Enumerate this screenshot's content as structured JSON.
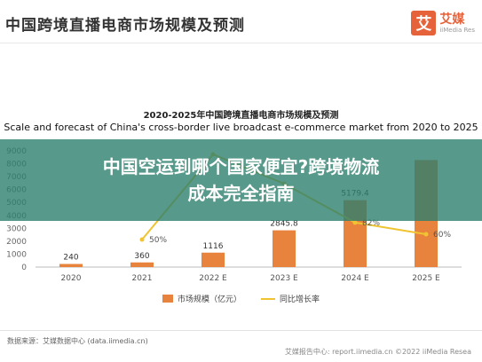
{
  "header": {
    "title": "中国跨境直播电商市场规模及预测",
    "logo_mark": "艾",
    "logo_cn": "艾媒",
    "logo_en": "iiMedia Res"
  },
  "banner": {
    "line1": "中国空运到哪个国家便宜?跨境物流",
    "line2": "成本完全指南"
  },
  "footer": {
    "source": "数据来源：艾媒数据中心 (data.iimedia.cn)",
    "report": "艾媒报告中心: report.iimedia.cn",
    "copyright": "©2022 iiMedia Resea"
  },
  "colors": {
    "bar": "#e8833e",
    "line": "#f0c431",
    "banner": "#2d806e"
  },
  "chart_data": {
    "type": "bar",
    "title": "2020-2025年中国跨境直播电商市场规模及预测",
    "subtitle": "Scale and forecast of China's cross-border live broadcast e-commerce market from 2020 to 2025",
    "categories": [
      "2020",
      "2021",
      "2022 E",
      "2023 E",
      "2024 E",
      "2025 E"
    ],
    "ylim": [
      0,
      9000
    ],
    "yticks": [
      "0",
      "1000",
      "2000",
      "3000",
      "4000",
      "5000",
      "6000",
      "7000",
      "8000",
      "9000"
    ],
    "grid": false,
    "legend_position": "bottom-center",
    "series": [
      {
        "name": "市场规模（亿元）",
        "type": "bar",
        "values": [
          240,
          360,
          1116,
          2845.8,
          5179.4,
          8287
        ],
        "labels": [
          "240",
          "360",
          "1116",
          "2845.8",
          "5179.4",
          ""
        ]
      },
      {
        "name": "同比增长率",
        "type": "line",
        "values_pct": [
          null,
          50,
          210,
          155,
          82,
          60
        ],
        "labels": [
          "",
          "50%",
          "",
          "",
          "82%",
          "60%"
        ]
      }
    ]
  }
}
